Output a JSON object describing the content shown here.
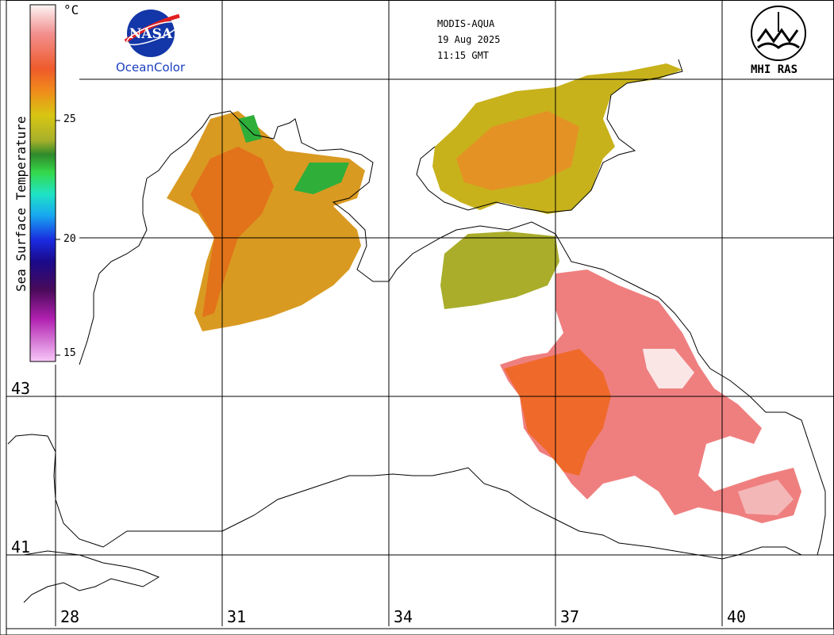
{
  "header": {
    "sensor": "MODIS-AQUA",
    "date": "19 Aug 2025",
    "time": "11:15 GMT"
  },
  "logos": {
    "nasa_text": "NASA",
    "nasa_caption": "OceanColor",
    "mhi_caption": "MHI RAS"
  },
  "colorbar": {
    "title": "Sea Surface Temperature",
    "unit": "°C",
    "ticks": [
      "25",
      "20",
      "15"
    ]
  },
  "grid": {
    "longitude_labels": [
      "28",
      "31",
      "34",
      "37",
      "40"
    ],
    "latitude_labels": [
      "43",
      "41"
    ]
  },
  "colors": {
    "hot": "#f08a8a",
    "warm_orange": "#ef7a1c",
    "yellow": "#d8c612",
    "olive": "#a9ad2a",
    "green": "#2fae3a"
  }
}
